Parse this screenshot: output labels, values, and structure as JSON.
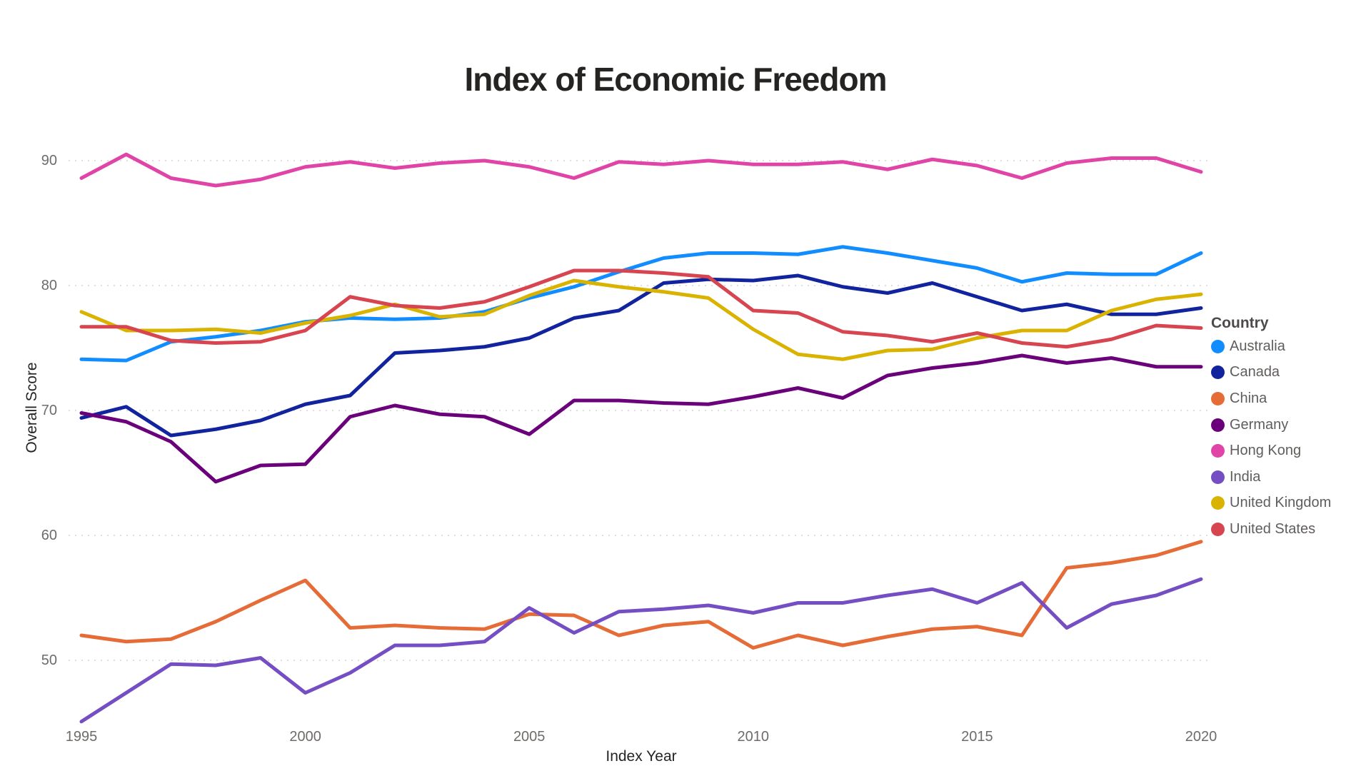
{
  "title": "Index of Economic Freedom",
  "axes": {
    "x_title": "Index Year",
    "y_title": "Overall Score",
    "x_ticks": [
      "1995",
      "2000",
      "2005",
      "2010",
      "2015",
      "2020"
    ],
    "y_ticks": [
      "90",
      "80",
      "70",
      "60",
      "50"
    ]
  },
  "legend": {
    "title": "Country",
    "items": [
      {
        "label": "Australia",
        "color": "#118DFF"
      },
      {
        "label": "Canada",
        "color": "#12239E"
      },
      {
        "label": "China",
        "color": "#E66C37"
      },
      {
        "label": "Germany",
        "color": "#6B007B"
      },
      {
        "label": "Hong Kong",
        "color": "#E044A7"
      },
      {
        "label": "India",
        "color": "#744EC2"
      },
      {
        "label": "United Kingdom",
        "color": "#D9B300"
      },
      {
        "label": "United States",
        "color": "#D64550"
      }
    ]
  },
  "chart_data": {
    "type": "line",
    "title": "Index of Economic Freedom",
    "xlabel": "Index Year",
    "ylabel": "Overall Score",
    "xlim": [
      1995,
      2020
    ],
    "ylim": [
      45,
      92
    ],
    "grid": "horizontal dotted lines at y = 50, 60, 70, 80, 90",
    "legend_position": "right",
    "x": [
      1995,
      1996,
      1997,
      1998,
      1999,
      2000,
      2001,
      2002,
      2003,
      2004,
      2005,
      2006,
      2007,
      2008,
      2009,
      2010,
      2011,
      2012,
      2013,
      2014,
      2015,
      2016,
      2017,
      2018,
      2019,
      2020
    ],
    "series": [
      {
        "name": "Australia",
        "color": "#118DFF",
        "values": [
          74.1,
          74.0,
          75.5,
          75.9,
          76.4,
          77.1,
          77.4,
          77.3,
          77.4,
          77.9,
          79.0,
          79.9,
          81.1,
          82.2,
          82.6,
          82.6,
          82.5,
          83.1,
          82.6,
          82.0,
          81.4,
          80.3,
          81.0,
          80.9,
          80.9,
          82.6
        ]
      },
      {
        "name": "Canada",
        "color": "#12239E",
        "values": [
          69.4,
          70.3,
          68.0,
          68.5,
          69.2,
          70.5,
          71.2,
          74.6,
          74.8,
          75.1,
          75.8,
          77.4,
          78.0,
          80.2,
          80.5,
          80.4,
          80.8,
          79.9,
          79.4,
          80.2,
          79.1,
          78.0,
          78.5,
          77.7,
          77.7,
          78.2
        ]
      },
      {
        "name": "China",
        "color": "#E66C37",
        "values": [
          52.0,
          51.5,
          51.7,
          53.1,
          54.8,
          56.4,
          52.6,
          52.8,
          52.6,
          52.5,
          53.7,
          53.6,
          52.0,
          52.8,
          53.1,
          51.0,
          52.0,
          51.2,
          51.9,
          52.5,
          52.7,
          52.0,
          57.4,
          57.8,
          58.4,
          59.5
        ]
      },
      {
        "name": "Germany",
        "color": "#6B007B",
        "values": [
          69.8,
          69.1,
          67.5,
          64.3,
          65.6,
          65.7,
          69.5,
          70.4,
          69.7,
          69.5,
          68.1,
          70.8,
          70.8,
          70.6,
          70.5,
          71.1,
          71.8,
          71.0,
          72.8,
          73.4,
          73.8,
          74.4,
          73.8,
          74.2,
          73.5,
          73.5
        ]
      },
      {
        "name": "Hong Kong",
        "color": "#E044A7",
        "values": [
          88.6,
          90.5,
          88.6,
          88.0,
          88.5,
          89.5,
          89.9,
          89.4,
          89.8,
          90.0,
          89.5,
          88.6,
          89.9,
          89.7,
          90.0,
          89.7,
          89.7,
          89.9,
          89.3,
          90.1,
          89.6,
          88.6,
          89.8,
          90.2,
          90.2,
          89.1
        ]
      },
      {
        "name": "India",
        "color": "#744EC2",
        "values": [
          45.1,
          47.4,
          49.7,
          49.6,
          50.2,
          47.4,
          49.0,
          51.2,
          51.2,
          51.5,
          54.2,
          52.2,
          53.9,
          54.1,
          54.4,
          53.8,
          54.6,
          54.6,
          55.2,
          55.7,
          54.6,
          56.2,
          52.6,
          54.5,
          55.2,
          56.5
        ]
      },
      {
        "name": "United Kingdom",
        "color": "#D9B300",
        "values": [
          77.9,
          76.4,
          76.4,
          76.5,
          76.2,
          77.0,
          77.6,
          78.5,
          77.5,
          77.7,
          79.2,
          80.4,
          79.9,
          79.5,
          79.0,
          76.5,
          74.5,
          74.1,
          74.8,
          74.9,
          75.8,
          76.4,
          76.4,
          78.0,
          78.9,
          79.3
        ]
      },
      {
        "name": "United States",
        "color": "#D64550",
        "values": [
          76.7,
          76.7,
          75.6,
          75.4,
          75.5,
          76.4,
          79.1,
          78.4,
          78.2,
          78.7,
          79.9,
          81.2,
          81.2,
          81.0,
          80.7,
          78.0,
          77.8,
          76.3,
          76.0,
          75.5,
          76.2,
          75.4,
          75.1,
          75.7,
          76.8,
          76.6
        ]
      }
    ]
  }
}
